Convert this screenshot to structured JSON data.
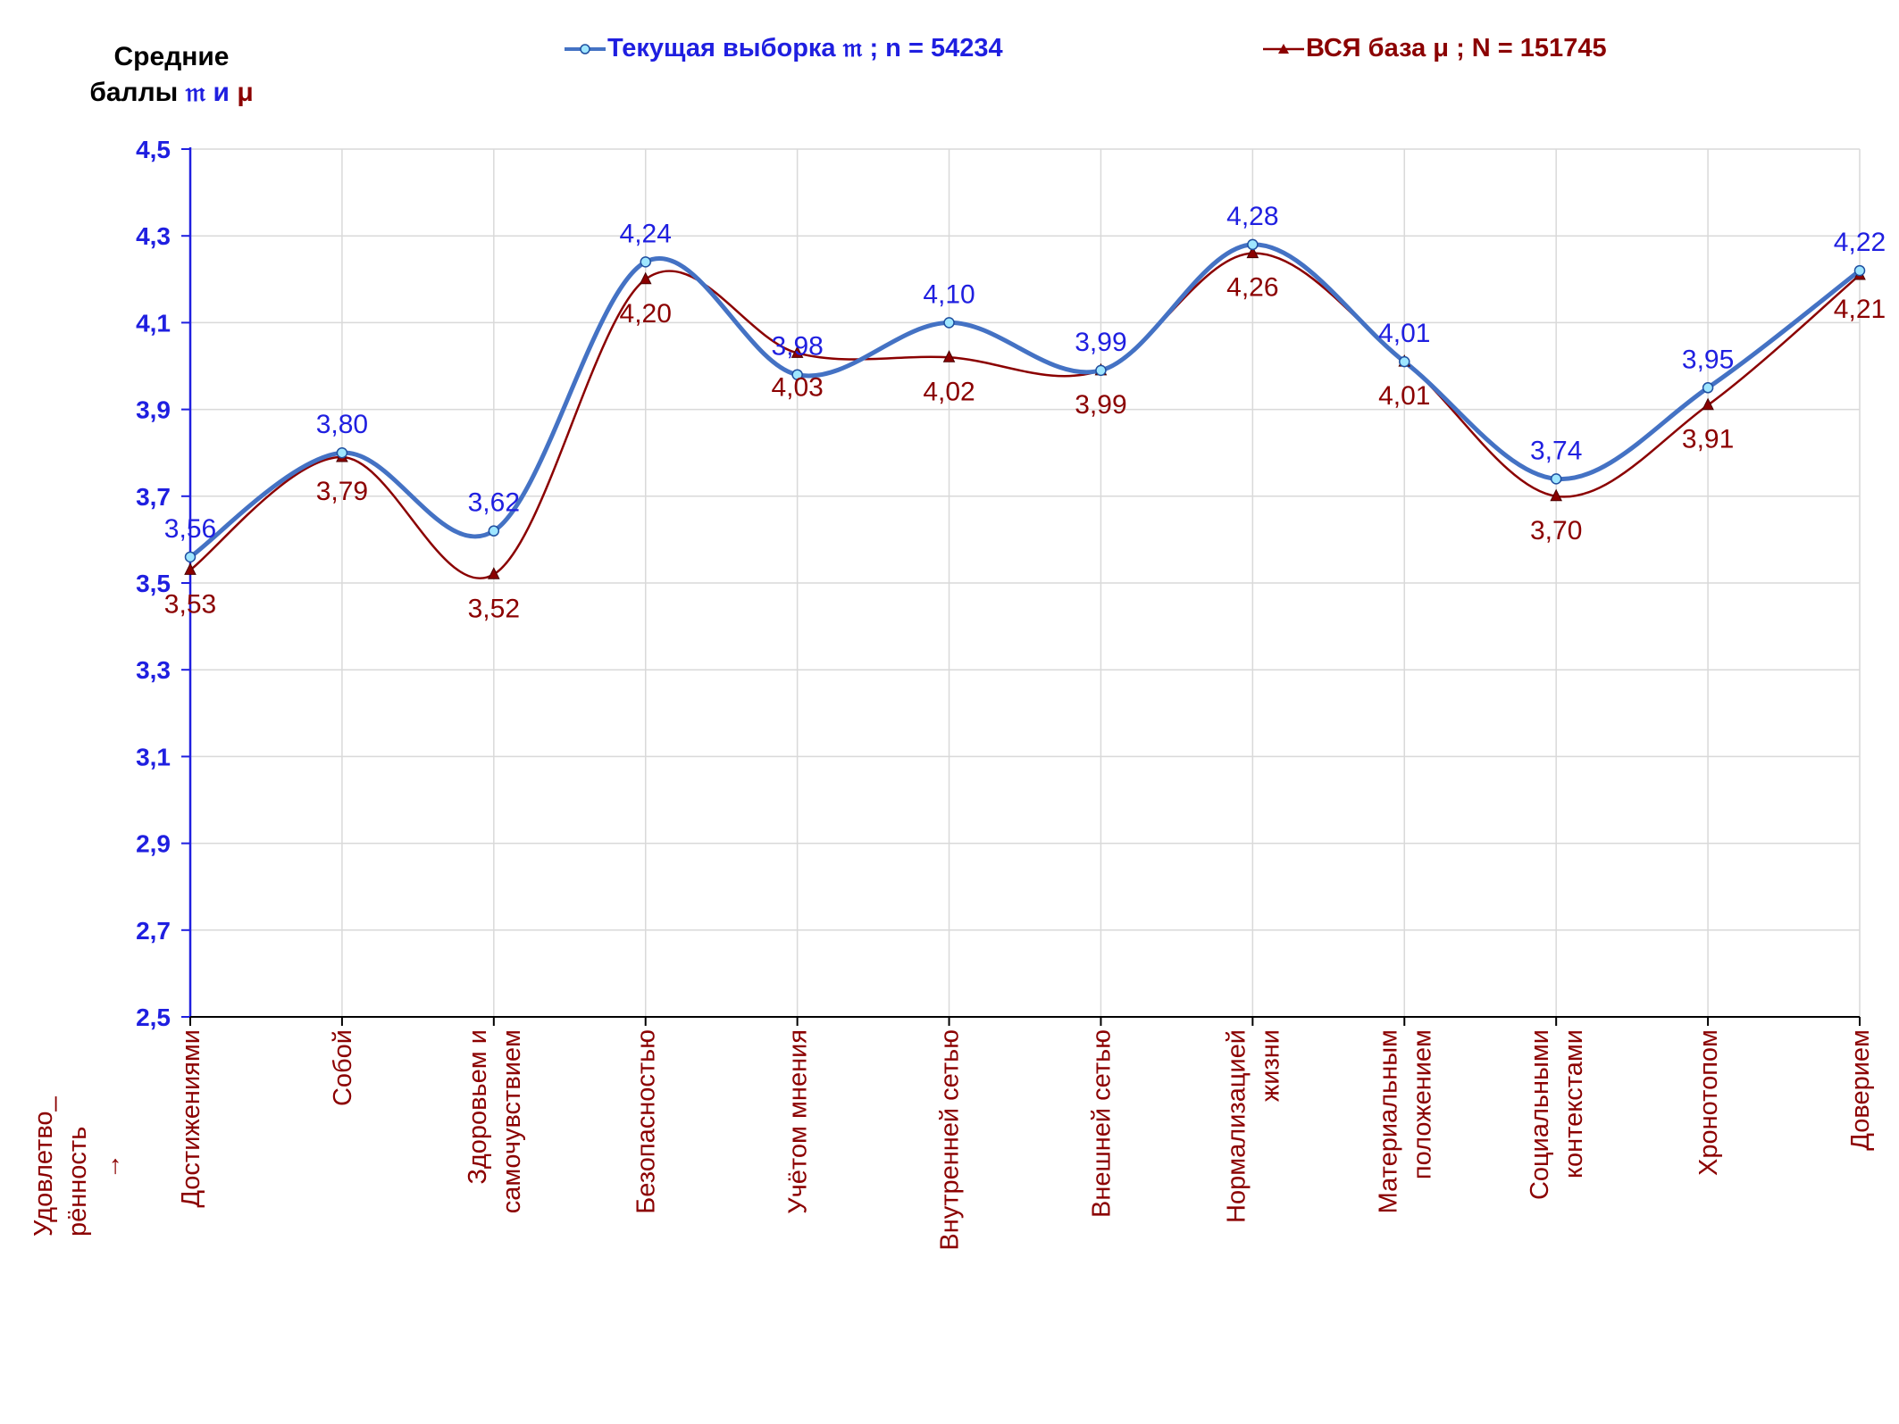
{
  "y_title": {
    "line1": "Средние",
    "line2_prefix": "баллы",
    "sym_a": "𝔪",
    "conj": "и",
    "sym_b": "μ"
  },
  "side_label": {
    "line1": "Удовлетво_",
    "line2": "рённость",
    "arrow": "→"
  },
  "colors": {
    "series_a": "#4472c4",
    "series_a_label": "#1f1fe0",
    "series_b": "#8b0000",
    "grid": "#d9d9d9",
    "axis": "#1f1fe0"
  },
  "chart_data": {
    "type": "line",
    "categories": [
      [
        "Достижениями"
      ],
      [
        "Собой"
      ],
      [
        "Здоровьем и",
        "самочувствием"
      ],
      [
        "Безопасностью"
      ],
      [
        "Учётом мнения"
      ],
      [
        "Внутренней сетью"
      ],
      [
        "Внешней сетью"
      ],
      [
        "Нормализацией",
        "жизни"
      ],
      [
        "Материальным",
        "положением"
      ],
      [
        "Социальными",
        "контекстами"
      ],
      [
        "Хронотопом"
      ],
      [
        "Доверием"
      ]
    ],
    "series": [
      {
        "name": "Текущая выборка 𝔪 ; n = 54234",
        "values": [
          3.56,
          3.8,
          3.62,
          4.24,
          3.98,
          4.1,
          3.99,
          4.28,
          4.01,
          3.74,
          3.95,
          4.22
        ],
        "labels": [
          "3,56",
          "3,80",
          "3,62",
          "4,24",
          "3,98",
          "4,10",
          "3,99",
          "4,28",
          "4,01",
          "3,74",
          "3,95",
          "4,22"
        ]
      },
      {
        "name": "ВСЯ база μ ; N = 151745",
        "values": [
          3.53,
          3.79,
          3.52,
          4.2,
          4.03,
          4.02,
          3.99,
          4.26,
          4.01,
          3.7,
          3.91,
          4.21
        ],
        "labels": [
          "3,53",
          "3,79",
          "3,52",
          "4,20",
          "4,03",
          "4,02",
          "3,99",
          "4,26",
          "4,01",
          "3,70",
          "3,91",
          "4,21"
        ]
      }
    ],
    "yticks": [
      "2,5",
      "2,7",
      "2,9",
      "3,1",
      "3,3",
      "3,5",
      "3,7",
      "3,9",
      "4,1",
      "4,3",
      "4,5"
    ],
    "ylim": [
      2.5,
      4.5
    ],
    "grid": true,
    "legend_position": "top"
  }
}
